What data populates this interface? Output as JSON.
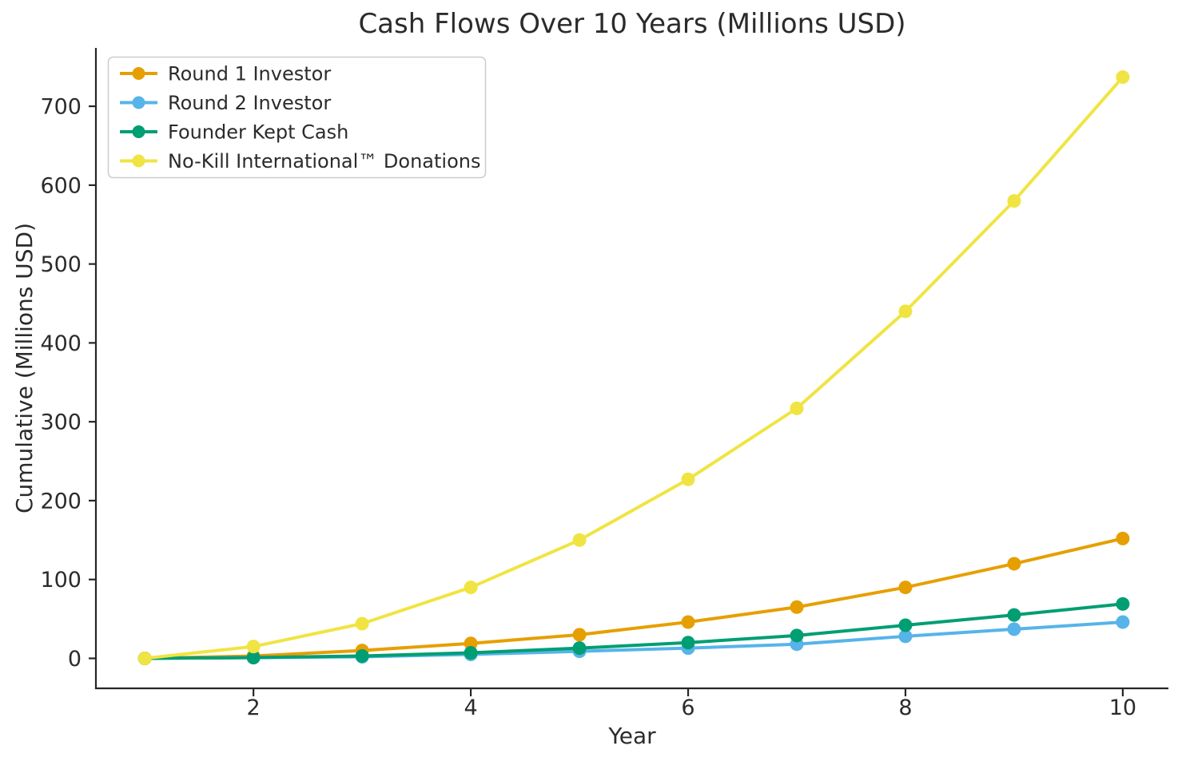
{
  "figure": {
    "background": "#ffffff",
    "text_color": "#2b2b2b",
    "spine_color": "#262626",
    "legend_border_color": "#cccccc"
  },
  "chart_data": {
    "type": "line",
    "title": "Cash Flows Over 10 Years (Millions USD)",
    "xlabel": "Year",
    "ylabel": "Cumulative (Millions USD)",
    "x": [
      1,
      2,
      3,
      4,
      5,
      6,
      7,
      8,
      9,
      10
    ],
    "xticks": [
      2,
      4,
      6,
      8,
      10
    ],
    "yticks": [
      0,
      100,
      200,
      300,
      400,
      500,
      600,
      700
    ],
    "xlim": [
      0.55,
      10.42
    ],
    "ylim": [
      -38,
      774
    ],
    "grid": false,
    "legend_position": "upper-left",
    "marker": "circle",
    "series": [
      {
        "name": "Round 1 Investor",
        "color": "#E69F00",
        "values": [
          0,
          3,
          10,
          19,
          30,
          46,
          65,
          90,
          120,
          152
        ]
      },
      {
        "name": "Round 2 Investor",
        "color": "#56B4E9",
        "values": [
          0,
          1,
          2,
          5,
          9,
          13,
          18,
          28,
          37,
          46
        ]
      },
      {
        "name": "Founder Kept Cash",
        "color": "#009E73",
        "values": [
          0,
          1,
          3,
          7,
          13,
          20,
          29,
          42,
          55,
          69
        ]
      },
      {
        "name": "No-Kill International™ Donations",
        "color": "#F0E442",
        "values": [
          0,
          15,
          44,
          90,
          150,
          227,
          317,
          440,
          580,
          737
        ]
      }
    ]
  }
}
